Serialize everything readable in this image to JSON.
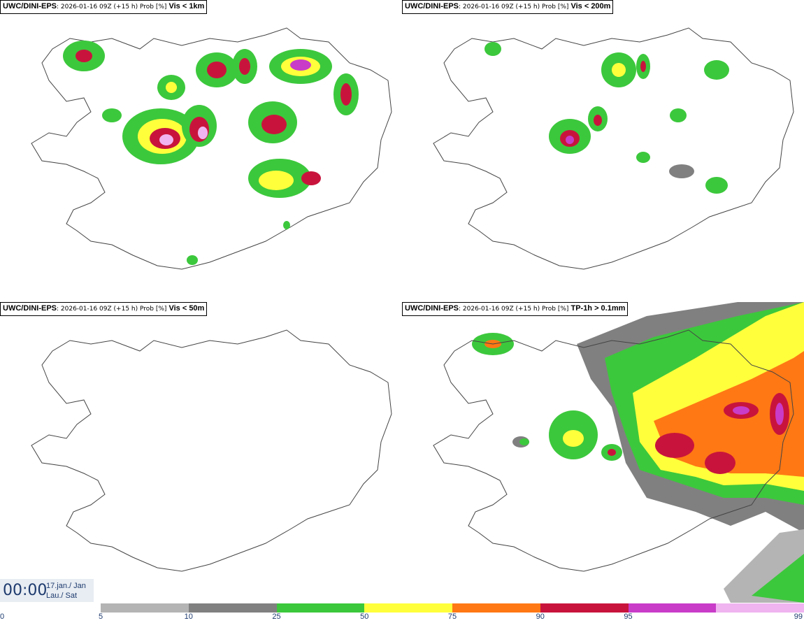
{
  "panels": [
    {
      "model": "UWC/DINI-EPS",
      "run": ": 2026-01-16 09Z (+15 h) Prob [%]",
      "variable": "Vis < 1km"
    },
    {
      "model": "UWC/DINI-EPS",
      "run": ": 2026-01-16 09Z (+15 h) Prob [%]",
      "variable": "Vis < 200m"
    },
    {
      "model": "UWC/DINI-EPS",
      "run": ": 2026-01-16 09Z (+15 h) Prob [%]",
      "variable": "Vis < 50m"
    },
    {
      "model": "UWC/DINI-EPS",
      "run": ": 2026-01-16 09Z (+15 h) Prob [%]",
      "variable": "TP-1h > 0.1mm"
    }
  ],
  "valid_time": {
    "time": "00:00",
    "date_line1": "17.jan./ Jan",
    "date_line2": "Lau./ Sat"
  },
  "legend": {
    "ticks": [
      "0",
      "5",
      "10",
      "25",
      "50",
      "75",
      "90",
      "95",
      "99"
    ],
    "colors": [
      "#b4b4b4",
      "#808080",
      "#3cc83c",
      "#ffff3c",
      "#ff7814",
      "#c8143c",
      "#c83cc8",
      "#f0b4f0"
    ]
  }
}
